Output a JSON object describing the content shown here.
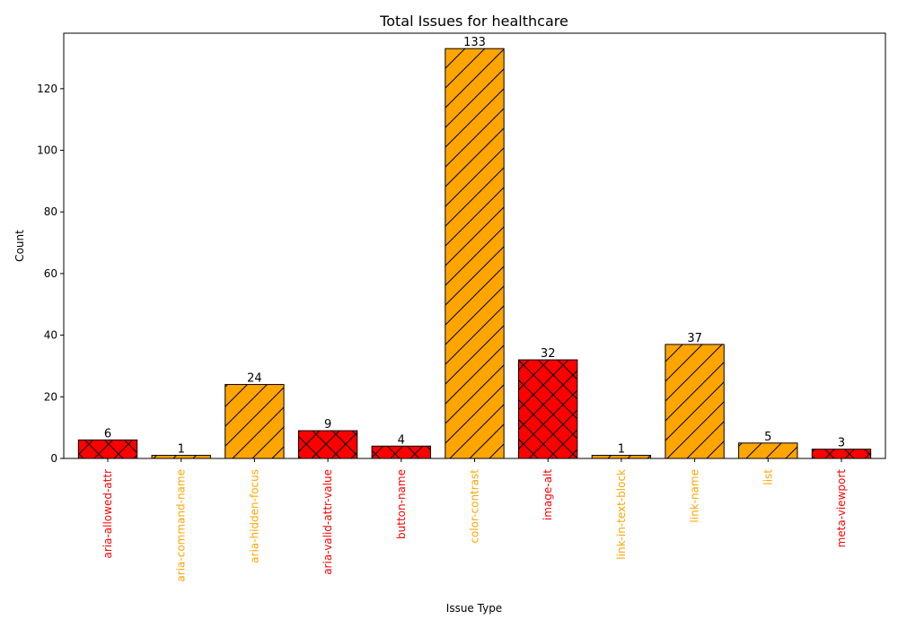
{
  "chart_data": {
    "type": "bar",
    "title": "Total Issues for healthcare",
    "xlabel": "Issue Type",
    "ylabel": "Count",
    "ylim": [
      0,
      138
    ],
    "yticks": [
      0,
      20,
      40,
      60,
      80,
      100,
      120
    ],
    "grid": false,
    "legend": "none",
    "categories": [
      "aria-allowed-attr",
      "aria-command-name",
      "aria-hidden-focus",
      "aria-valid-attr-value",
      "button-name",
      "color-contrast",
      "image-alt",
      "link-in-text-block",
      "link-name",
      "list",
      "meta-viewport"
    ],
    "values": [
      6,
      1,
      24,
      9,
      4,
      133,
      32,
      1,
      37,
      5,
      3
    ],
    "severity": [
      "critical",
      "serious",
      "serious",
      "critical",
      "critical",
      "serious",
      "critical",
      "serious",
      "serious",
      "serious",
      "critical"
    ],
    "colors": {
      "critical": "#ff0000",
      "serious": "#ffa500"
    },
    "hatches": {
      "critical": "cross",
      "serious": "diagonal"
    }
  }
}
